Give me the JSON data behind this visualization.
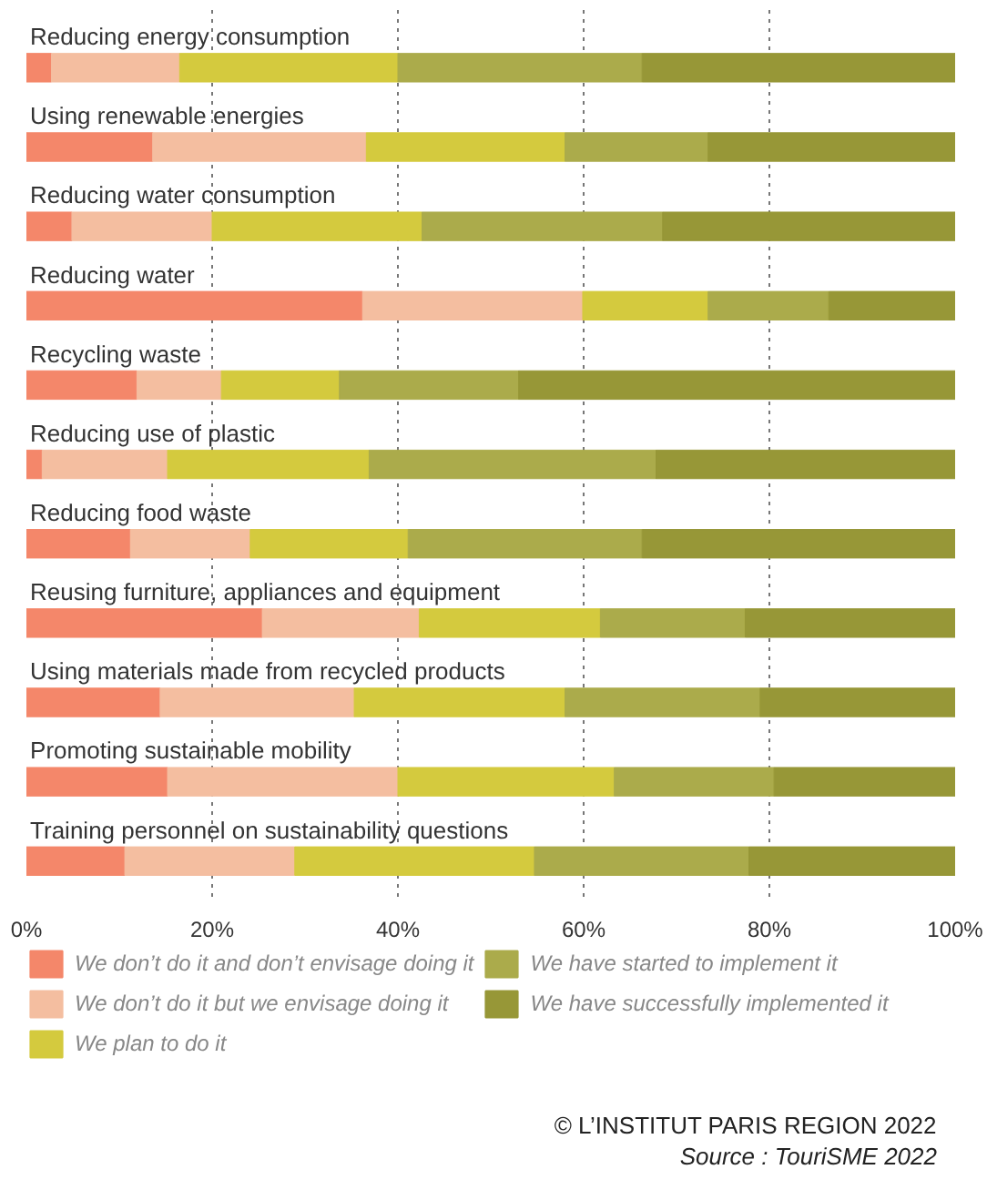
{
  "chart_data": {
    "type": "bar",
    "orientation": "horizontal",
    "stacked": true,
    "categories": [
      "Reducing energy consumption",
      "Using renewable energies",
      "Reducing water consumption",
      "Reducing water",
      "Recycling waste",
      "Reducing use of plastic",
      "Reducing food waste",
      "Reusing furniture, appliances and equipment",
      "Using materials made from recycled products",
      "Promoting sustainable mobility",
      "Training personnel on sustainability questions"
    ],
    "series": [
      {
        "name": "We don’t do it and don’t envisage doing it",
        "color": "#f4876a",
        "values": [
          2.7,
          13.6,
          4.9,
          36.2,
          11.9,
          1.7,
          11.2,
          25.4,
          14.4,
          15.2,
          10.6
        ]
      },
      {
        "name": "We don’t do it but we envisage doing it",
        "color": "#f4bea0",
        "values": [
          13.8,
          23.0,
          15.1,
          23.7,
          9.1,
          13.5,
          12.9,
          16.9,
          20.9,
          24.8,
          18.3
        ]
      },
      {
        "name": "We plan to do it",
        "color": "#d4ca3e",
        "values": [
          23.5,
          21.4,
          22.6,
          13.5,
          12.7,
          21.7,
          17.0,
          19.5,
          22.7,
          23.3,
          25.8
        ]
      },
      {
        "name": "We have started to implement it",
        "color": "#abab4b",
        "values": [
          26.3,
          15.4,
          25.9,
          13.0,
          19.3,
          30.9,
          25.2,
          15.6,
          21.0,
          17.2,
          23.1
        ]
      },
      {
        "name": "We have successfully implemented it",
        "color": "#979737",
        "values": [
          33.7,
          26.6,
          31.5,
          13.6,
          47.0,
          32.2,
          33.7,
          22.6,
          21.0,
          19.5,
          22.2
        ]
      }
    ],
    "xlim": [
      0,
      100
    ],
    "xticks": [
      {
        "value": 0,
        "label": "0%"
      },
      {
        "value": 20,
        "label": "20%"
      },
      {
        "value": 40,
        "label": "40%"
      },
      {
        "value": 60,
        "label": "60%"
      },
      {
        "value": 80,
        "label": "80%"
      },
      {
        "value": 100,
        "label": "100%"
      }
    ],
    "grid": "x",
    "legend": "bottom",
    "annotations": [
      "© L’INSTITUT PARIS REGION 2022",
      "Source : TouriSME 2022"
    ]
  }
}
